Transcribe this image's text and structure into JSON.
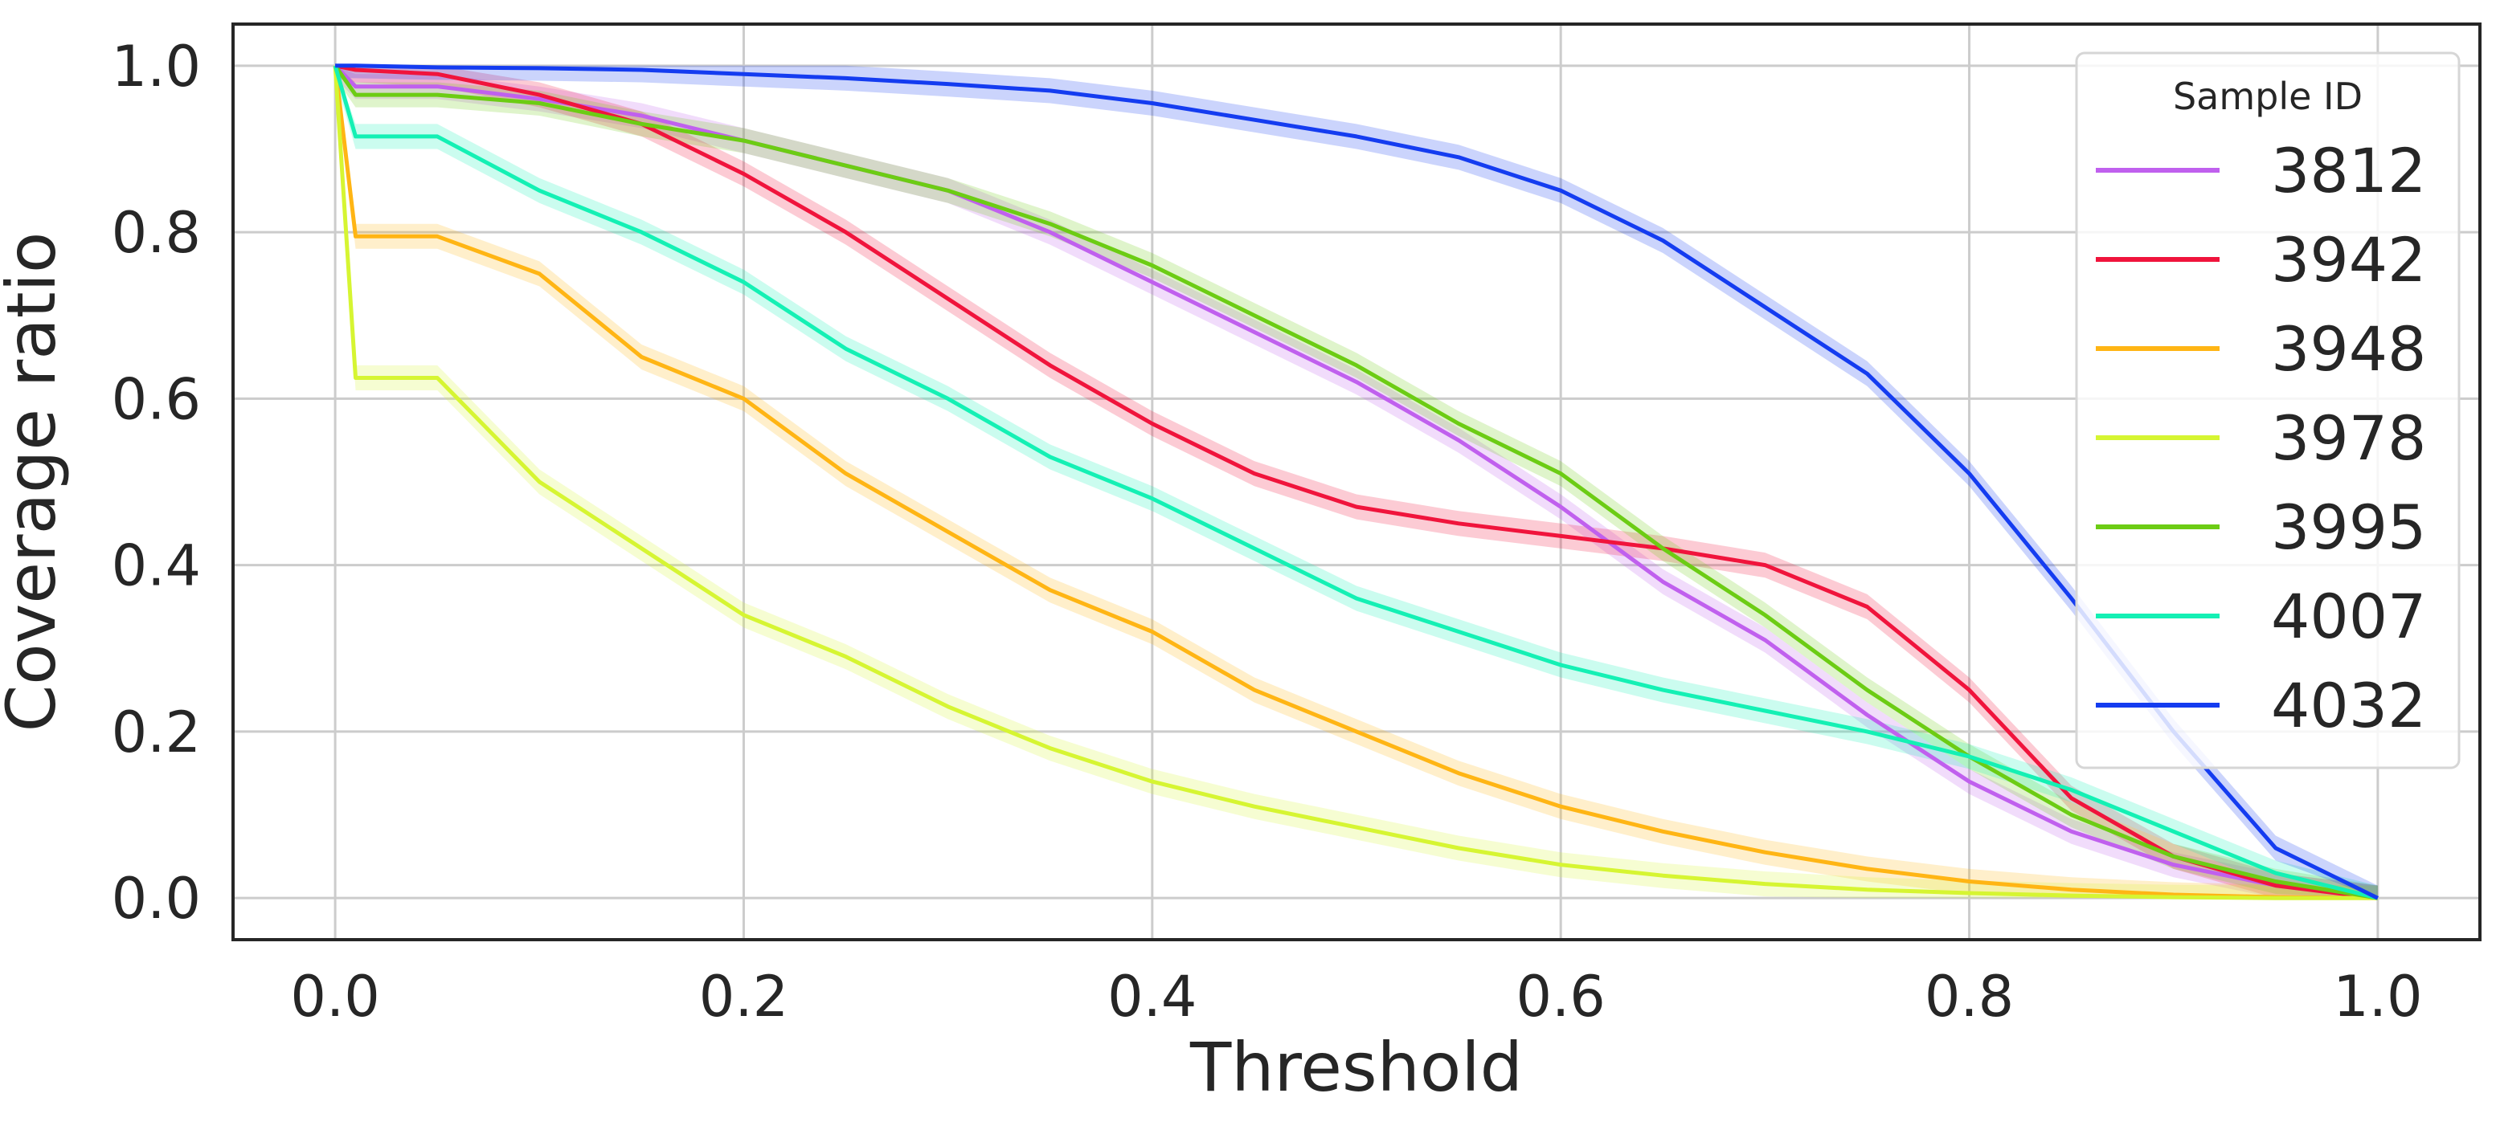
{
  "chart_data": {
    "type": "line",
    "title": "",
    "xlabel": "Threshold",
    "ylabel": "Coverage ratio",
    "xlim": [
      -0.05,
      1.05
    ],
    "ylim": [
      -0.05,
      1.05
    ],
    "xticks": [
      "0.0",
      "0.2",
      "0.4",
      "0.6",
      "0.8",
      "1.0"
    ],
    "yticks": [
      "0.0",
      "0.2",
      "0.4",
      "0.6",
      "0.8",
      "1.0"
    ],
    "grid": true,
    "legend": {
      "title": "Sample ID",
      "position": "top-right"
    },
    "x": [
      0.0,
      0.01,
      0.05,
      0.1,
      0.15,
      0.2,
      0.25,
      0.3,
      0.35,
      0.4,
      0.45,
      0.5,
      0.55,
      0.6,
      0.65,
      0.7,
      0.75,
      0.8,
      0.85,
      0.9,
      0.95,
      1.0
    ],
    "series": [
      {
        "name": "3812",
        "color": "#c060ee",
        "values": [
          1.0,
          0.975,
          0.975,
          0.96,
          0.94,
          0.91,
          0.88,
          0.85,
          0.8,
          0.74,
          0.68,
          0.62,
          0.55,
          0.47,
          0.38,
          0.31,
          0.22,
          0.14,
          0.08,
          0.04,
          0.015,
          0.0
        ]
      },
      {
        "name": "3942",
        "color": "#f0143c",
        "values": [
          1.0,
          0.995,
          0.99,
          0.965,
          0.93,
          0.87,
          0.8,
          0.72,
          0.64,
          0.57,
          0.51,
          0.47,
          0.45,
          0.435,
          0.42,
          0.4,
          0.35,
          0.25,
          0.12,
          0.05,
          0.015,
          0.0
        ]
      },
      {
        "name": "3948",
        "color": "#ffb514",
        "values": [
          1.0,
          0.795,
          0.795,
          0.75,
          0.65,
          0.6,
          0.51,
          0.44,
          0.37,
          0.32,
          0.25,
          0.2,
          0.15,
          0.11,
          0.08,
          0.055,
          0.035,
          0.02,
          0.01,
          0.004,
          0.001,
          0.0
        ]
      },
      {
        "name": "3978",
        "color": "#d6f532",
        "values": [
          1.0,
          0.625,
          0.625,
          0.5,
          0.42,
          0.34,
          0.29,
          0.23,
          0.18,
          0.14,
          0.11,
          0.085,
          0.06,
          0.04,
          0.027,
          0.017,
          0.01,
          0.006,
          0.003,
          0.001,
          0.0,
          0.0
        ]
      },
      {
        "name": "3995",
        "color": "#6ccc14",
        "values": [
          1.0,
          0.965,
          0.965,
          0.955,
          0.93,
          0.91,
          0.88,
          0.85,
          0.81,
          0.76,
          0.7,
          0.64,
          0.57,
          0.51,
          0.42,
          0.34,
          0.25,
          0.17,
          0.1,
          0.05,
          0.02,
          0.0
        ]
      },
      {
        "name": "4007",
        "color": "#14f0b4",
        "values": [
          1.0,
          0.915,
          0.915,
          0.85,
          0.8,
          0.74,
          0.66,
          0.6,
          0.53,
          0.48,
          0.42,
          0.36,
          0.32,
          0.28,
          0.25,
          0.225,
          0.2,
          0.17,
          0.13,
          0.08,
          0.03,
          0.0
        ]
      },
      {
        "name": "4032",
        "color": "#143cf0",
        "values": [
          1.0,
          1.0,
          0.998,
          0.997,
          0.995,
          0.99,
          0.985,
          0.978,
          0.97,
          0.955,
          0.935,
          0.915,
          0.89,
          0.85,
          0.79,
          0.71,
          0.63,
          0.51,
          0.36,
          0.2,
          0.06,
          0.0
        ]
      }
    ]
  }
}
